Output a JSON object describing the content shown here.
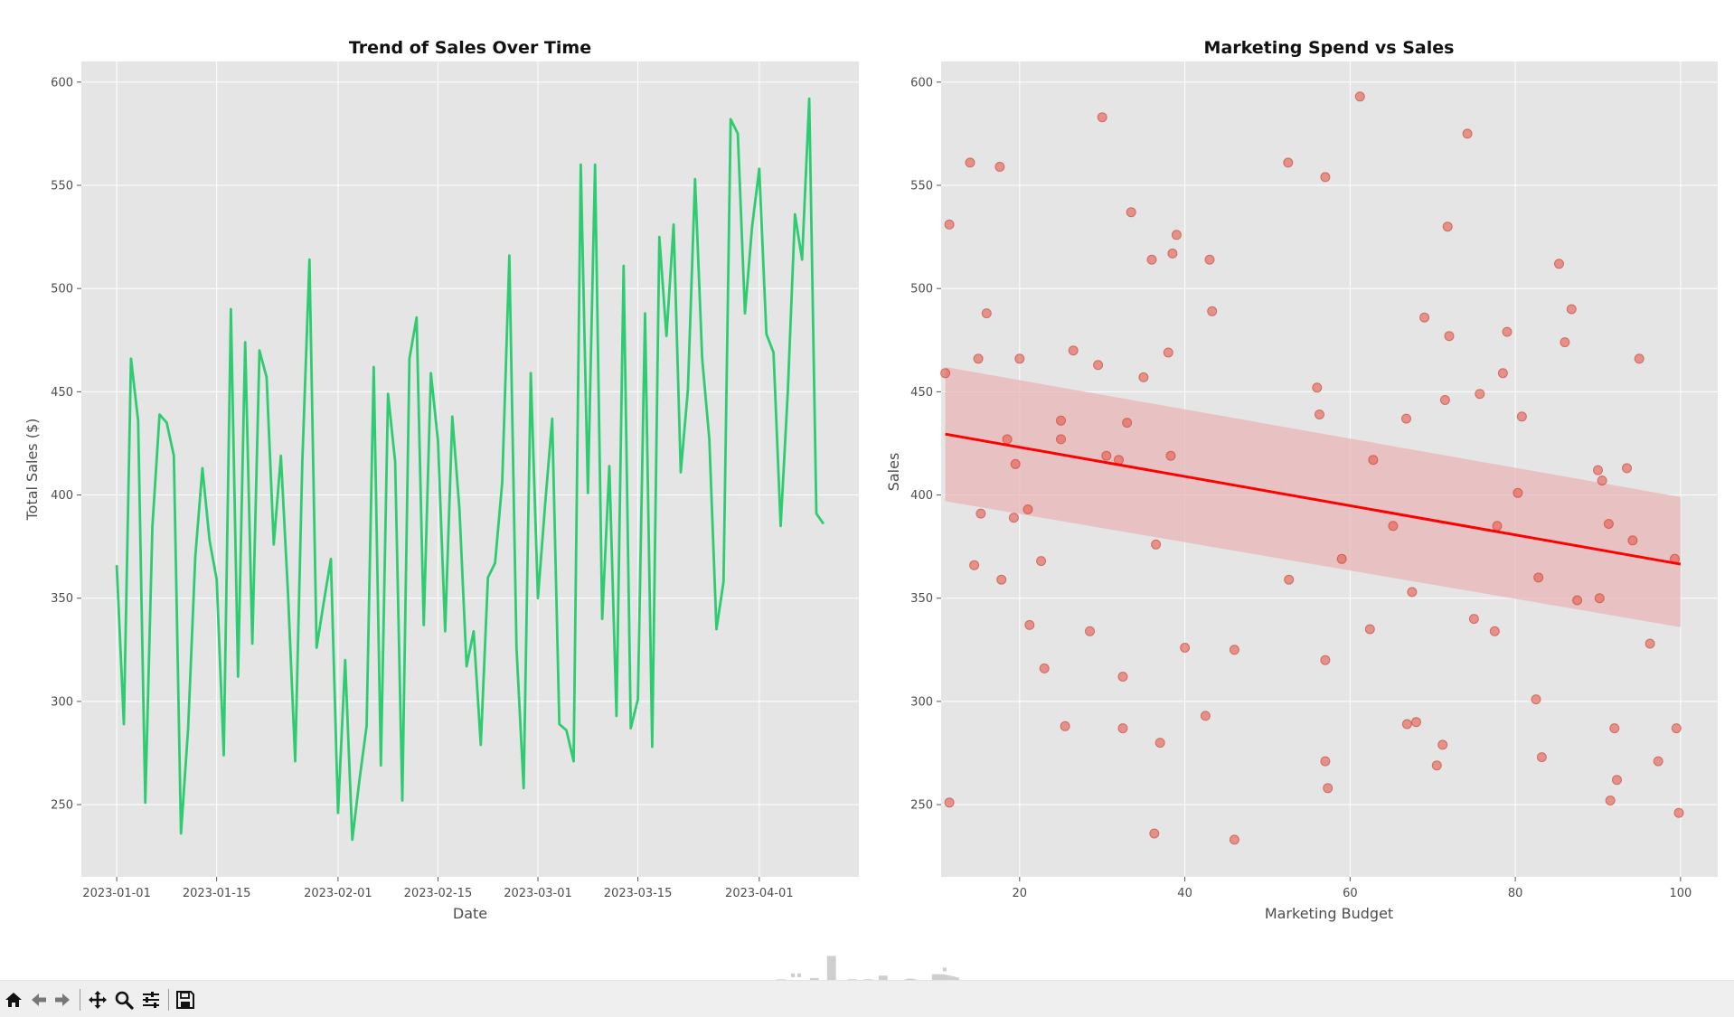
{
  "window": {
    "watermark": "خمسات"
  },
  "toolbar": {
    "buttons": [
      {
        "name": "home-icon"
      },
      {
        "name": "back-icon"
      },
      {
        "name": "forward-icon"
      },
      {
        "name": "pan-icon"
      },
      {
        "name": "zoom-icon"
      },
      {
        "name": "configure-subplots-icon"
      },
      {
        "name": "save-icon"
      }
    ]
  },
  "style": {
    "line_color": "#2ecc71",
    "point_color": "#e74c3c",
    "fit_color": "#ff0000",
    "band_color": "#e8b5b5",
    "panel_bg": "#e5e5e5",
    "grid_color": "#ffffff"
  },
  "chart_data": [
    {
      "type": "line",
      "title": "Trend of Sales Over Time",
      "xlabel": "Date",
      "ylabel": "Total Sales ($)",
      "x_start": "2023-01-01",
      "x_step_days": 1,
      "ylim": [
        215,
        610
      ],
      "yticks": [
        250,
        300,
        350,
        400,
        450,
        500,
        550,
        600
      ],
      "xticks": [
        "2023-01-01",
        "2023-01-15",
        "2023-02-01",
        "2023-02-15",
        "2023-03-01",
        "2023-03-15",
        "2023-04-01"
      ],
      "grid": true,
      "values": [
        366,
        289,
        466,
        436,
        251,
        385,
        439,
        435,
        419,
        236,
        287,
        370,
        413,
        378,
        359,
        274,
        490,
        312,
        474,
        328,
        470,
        457,
        376,
        419,
        352,
        271,
        416,
        514,
        326,
        348,
        369,
        246,
        320,
        233,
        262,
        288,
        462,
        269,
        449,
        416,
        252,
        466,
        486,
        337,
        459,
        426,
        334,
        438,
        393,
        317,
        334,
        279,
        360,
        367,
        406,
        516,
        326,
        258,
        459,
        350,
        395,
        437,
        289,
        286,
        271,
        560,
        401,
        560,
        340,
        414,
        293,
        511,
        287,
        301,
        488,
        278,
        525,
        477,
        531,
        411,
        451,
        553,
        466,
        427,
        335,
        358,
        582,
        575,
        488,
        530,
        558,
        478,
        469,
        385,
        450,
        536,
        514,
        592,
        391,
        386
      ]
    },
    {
      "type": "scatter",
      "title": "Marketing Spend vs Sales",
      "xlabel": "Marketing Budget",
      "ylabel": "Sales",
      "xlim": [
        10.5,
        104.5
      ],
      "ylim": [
        215,
        610
      ],
      "xticks": [
        20,
        40,
        60,
        80,
        100
      ],
      "yticks": [
        250,
        300,
        350,
        400,
        450,
        500,
        550,
        600
      ],
      "grid": true,
      "regression": {
        "x": [
          11.0,
          100.0
        ],
        "y": [
          429.5,
          366.5
        ],
        "ci_lower": [
          397,
          336
        ],
        "ci_upper": [
          462,
          399
        ]
      },
      "points": [
        [
          11,
          459
        ],
        [
          11.5,
          531
        ],
        [
          11.5,
          251
        ],
        [
          14,
          561
        ],
        [
          14.5,
          366
        ],
        [
          15,
          466
        ],
        [
          15.3,
          391
        ],
        [
          16,
          488
        ],
        [
          17.6,
          559
        ],
        [
          17.8,
          359
        ],
        [
          18.5,
          427
        ],
        [
          19.3,
          389
        ],
        [
          19.5,
          415
        ],
        [
          20,
          466
        ],
        [
          21,
          393
        ],
        [
          21.2,
          337
        ],
        [
          22.6,
          368
        ],
        [
          23,
          316
        ],
        [
          25,
          436
        ],
        [
          25,
          427
        ],
        [
          25.5,
          288
        ],
        [
          26.5,
          470
        ],
        [
          28.5,
          334
        ],
        [
          29.5,
          463
        ],
        [
          30,
          583
        ],
        [
          30.5,
          419
        ],
        [
          32,
          417
        ],
        [
          32.5,
          312
        ],
        [
          32.5,
          287
        ],
        [
          33,
          435
        ],
        [
          33.5,
          537
        ],
        [
          35,
          457
        ],
        [
          36,
          514
        ],
        [
          36.3,
          236
        ],
        [
          36.5,
          376
        ],
        [
          37,
          280
        ],
        [
          38,
          469
        ],
        [
          38.3,
          419
        ],
        [
          38.5,
          517
        ],
        [
          39,
          526
        ],
        [
          40,
          326
        ],
        [
          42.5,
          293
        ],
        [
          43,
          514
        ],
        [
          43.3,
          489
        ],
        [
          46,
          325
        ],
        [
          46,
          233
        ],
        [
          52.5,
          561
        ],
        [
          52.6,
          359
        ],
        [
          56,
          452
        ],
        [
          56.3,
          439
        ],
        [
          57,
          554
        ],
        [
          57,
          320
        ],
        [
          57,
          271
        ],
        [
          57.3,
          258
        ],
        [
          59,
          369
        ],
        [
          61.2,
          593
        ],
        [
          62.4,
          335
        ],
        [
          62.8,
          417
        ],
        [
          65.2,
          385
        ],
        [
          66.8,
          437
        ],
        [
          66.9,
          289
        ],
        [
          67.5,
          353
        ],
        [
          68,
          290
        ],
        [
          69,
          486
        ],
        [
          70.5,
          269
        ],
        [
          71.2,
          279
        ],
        [
          71.5,
          446
        ],
        [
          71.8,
          530
        ],
        [
          72,
          477
        ],
        [
          74.2,
          575
        ],
        [
          75,
          340
        ],
        [
          75.7,
          449
        ],
        [
          77.5,
          334
        ],
        [
          77.8,
          385
        ],
        [
          78.5,
          459
        ],
        [
          79,
          479
        ],
        [
          80.3,
          401
        ],
        [
          80.8,
          438
        ],
        [
          82.5,
          301
        ],
        [
          82.8,
          360
        ],
        [
          83.2,
          273
        ],
        [
          85.3,
          512
        ],
        [
          86,
          474
        ],
        [
          86.8,
          490
        ],
        [
          87.5,
          349
        ],
        [
          90,
          412
        ],
        [
          90.2,
          350
        ],
        [
          90.5,
          407
        ],
        [
          91.3,
          386
        ],
        [
          91.5,
          252
        ],
        [
          92,
          287
        ],
        [
          92.3,
          262
        ],
        [
          93.5,
          413
        ],
        [
          94.2,
          378
        ],
        [
          95,
          466
        ],
        [
          96.3,
          328
        ],
        [
          97.3,
          271
        ],
        [
          99.3,
          369
        ],
        [
          99.5,
          287
        ],
        [
          99.8,
          246
        ]
      ]
    }
  ]
}
